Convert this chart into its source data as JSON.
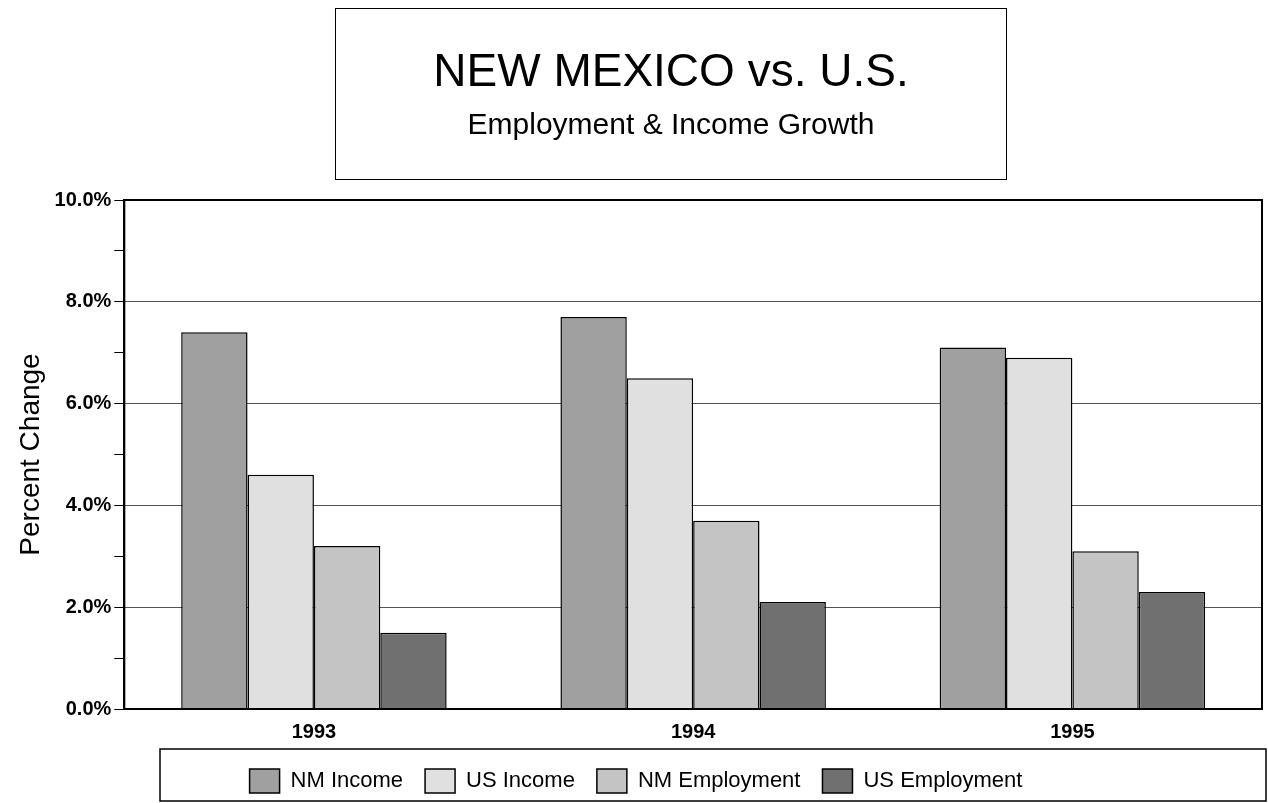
{
  "chart_data": {
    "type": "bar",
    "title": "NEW MEXICO vs. U.S.",
    "subtitle": "Employment & Income Growth",
    "ylabel": "Percent Change",
    "categories": [
      "1993",
      "1994",
      "1995"
    ],
    "series": [
      {
        "name": "NM Income",
        "color": "#a0a0a0",
        "values": [
          7.4,
          7.7,
          7.1
        ]
      },
      {
        "name": "US Income",
        "color": "#e0e0e0",
        "values": [
          4.6,
          6.5,
          6.9
        ]
      },
      {
        "name": "NM Employment",
        "color": "#c4c4c4",
        "values": [
          3.2,
          3.7,
          3.1
        ]
      },
      {
        "name": "US Employment",
        "color": "#707070",
        "values": [
          1.5,
          2.1,
          2.3
        ]
      }
    ],
    "ylim": [
      0,
      10
    ],
    "yticks": [
      {
        "value": 0,
        "label": "0.0%"
      },
      {
        "value": 1,
        "label": null
      },
      {
        "value": 2,
        "label": "2.0%"
      },
      {
        "value": 3,
        "label": null
      },
      {
        "value": 4,
        "label": "4.0%"
      },
      {
        "value": 5,
        "label": null
      },
      {
        "value": 6,
        "label": "6.0%"
      },
      {
        "value": 7,
        "label": null
      },
      {
        "value": 8,
        "label": "8.0%"
      },
      {
        "value": 9,
        "label": null
      },
      {
        "value": 10,
        "label": "10.0%"
      }
    ],
    "grid": "y",
    "legend": "bottom"
  }
}
